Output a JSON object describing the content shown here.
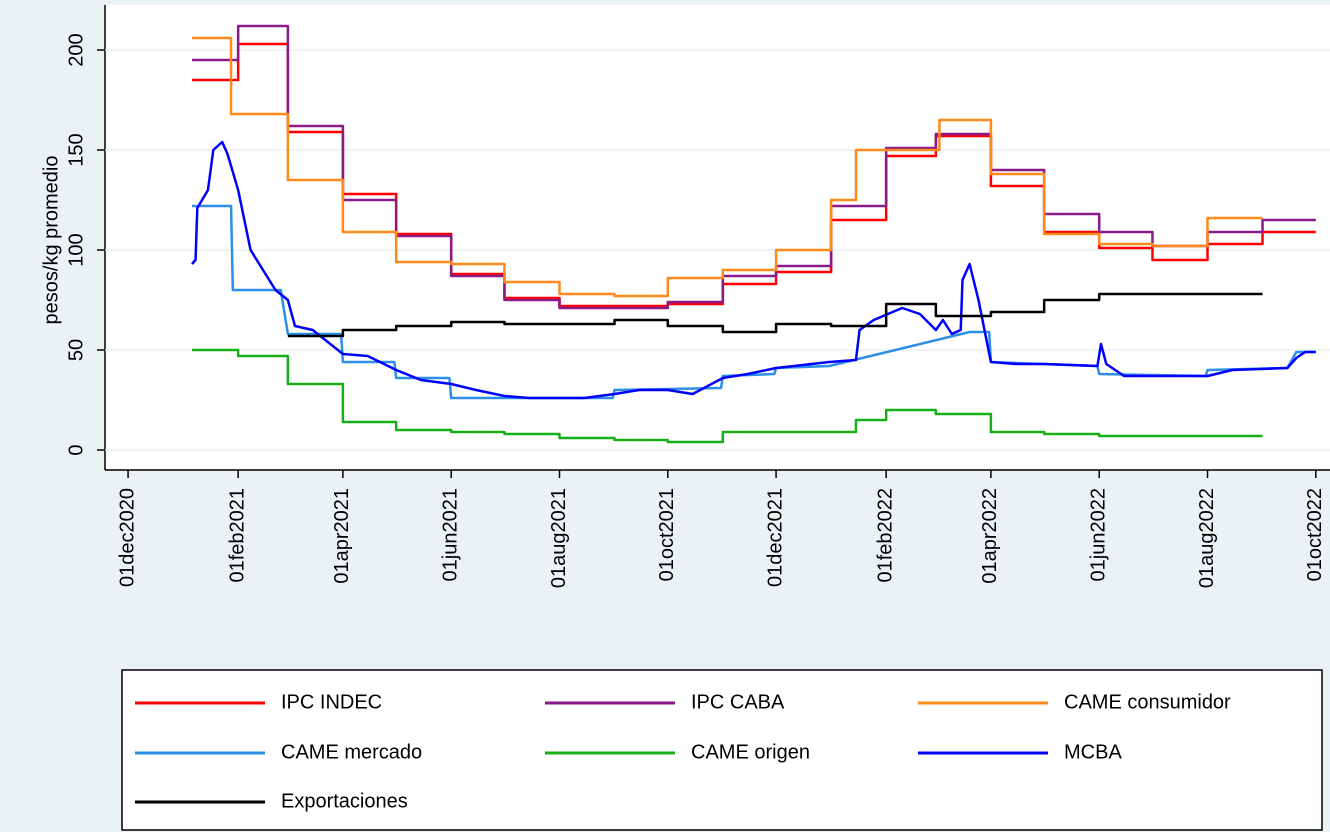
{
  "chart_data": {
    "type": "line",
    "ylabel": "pesos/kg promedio",
    "ylim": [
      -10,
      222.5
    ],
    "yticks": [
      0,
      50,
      100,
      150,
      200
    ],
    "xlim": [
      "2020-11-18",
      "2022-10-09"
    ],
    "xticks": [
      {
        "value": "2020-12-01",
        "label": "01dec2020"
      },
      {
        "value": "2021-02-01",
        "label": "01feb2021"
      },
      {
        "value": "2021-04-01",
        "label": "01apr2021"
      },
      {
        "value": "2021-06-01",
        "label": "01jun2021"
      },
      {
        "value": "2021-08-01",
        "label": "01aug2021"
      },
      {
        "value": "2021-10-01",
        "label": "01oct2021"
      },
      {
        "value": "2021-12-01",
        "label": "01dec2021"
      },
      {
        "value": "2022-02-01",
        "label": "01feb2022"
      },
      {
        "value": "2022-04-01",
        "label": "01apr2022"
      },
      {
        "value": "2022-06-01",
        "label": "01jun2022"
      },
      {
        "value": "2022-08-01",
        "label": "01aug2022"
      },
      {
        "value": "2022-10-01",
        "label": "01oct2022"
      }
    ],
    "grid": true,
    "legend": "bottom",
    "series": [
      {
        "name": "IPC INDEC",
        "color": "#ff0000",
        "step": true,
        "x": [
          "2021-01-06",
          "2021-02-01",
          "2021-03-01",
          "2021-04-01",
          "2021-05-01",
          "2021-06-01",
          "2021-07-01",
          "2021-08-01",
          "2021-09-01",
          "2021-10-01",
          "2021-11-01",
          "2021-12-01",
          "2022-01-01",
          "2022-02-01",
          "2022-03-01",
          "2022-04-01",
          "2022-05-01",
          "2022-06-01",
          "2022-07-01",
          "2022-08-01",
          "2022-09-01",
          "2022-10-01"
        ],
        "values": [
          185,
          203,
          159,
          128,
          108,
          88,
          76,
          72,
          72,
          73,
          83,
          89,
          115,
          147,
          157,
          132,
          109,
          101,
          95,
          103,
          109,
          109
        ]
      },
      {
        "name": "IPC CABA",
        "color": "#8b1a89",
        "step": true,
        "x": [
          "2021-01-06",
          "2021-02-01",
          "2021-03-01",
          "2021-04-01",
          "2021-05-01",
          "2021-06-01",
          "2021-07-01",
          "2021-08-01",
          "2021-09-01",
          "2021-10-01",
          "2021-11-01",
          "2021-12-01",
          "2022-01-01",
          "2022-02-01",
          "2022-03-01",
          "2022-04-01",
          "2022-05-01",
          "2022-06-01",
          "2022-07-01",
          "2022-08-01",
          "2022-09-01",
          "2022-10-01"
        ],
        "values": [
          195,
          212,
          162,
          125,
          107,
          87,
          75,
          71,
          71,
          74,
          87,
          92,
          122,
          151,
          158,
          140,
          118,
          109,
          102,
          109,
          115,
          115
        ]
      },
      {
        "name": "CAME consumidor",
        "color": "#ff8a1c",
        "step": true,
        "x": [
          "2021-01-06",
          "2021-01-28",
          "2021-03-01",
          "2021-04-01",
          "2021-05-01",
          "2021-06-01",
          "2021-07-01",
          "2021-08-01",
          "2021-09-01",
          "2021-10-01",
          "2021-11-01",
          "2021-12-01",
          "2022-01-01",
          "2022-01-15",
          "2022-02-01",
          "2022-03-03",
          "2022-04-01",
          "2022-05-01",
          "2022-06-01",
          "2022-07-01",
          "2022-08-01",
          "2022-09-01"
        ],
        "values": [
          206,
          168,
          135,
          109,
          94,
          93,
          84,
          78,
          77,
          86,
          90,
          100,
          125,
          150,
          150,
          165,
          138,
          108,
          103,
          102,
          116,
          116
        ]
      },
      {
        "name": "CAME mercado",
        "color": "#2e8fe8",
        "step": false,
        "x": [
          "2021-01-06",
          "2021-01-28",
          "2021-01-29",
          "2021-02-25",
          "2021-03-01",
          "2021-03-31",
          "2021-04-01",
          "2021-04-30",
          "2021-05-01",
          "2021-05-31",
          "2021-06-01",
          "2021-08-31",
          "2021-09-01",
          "2021-10-31",
          "2021-11-01",
          "2021-11-30",
          "2021-12-01",
          "2021-12-31",
          "2022-03-20",
          "2022-03-31",
          "2022-04-01",
          "2022-05-31",
          "2022-06-01",
          "2022-07-31",
          "2022-08-01",
          "2022-09-15",
          "2022-09-20",
          "2022-10-01"
        ],
        "values": [
          122,
          122,
          80,
          80,
          58,
          58,
          44,
          44,
          36,
          36,
          26,
          26,
          30,
          31,
          37,
          38,
          41,
          42,
          59,
          59,
          44,
          42,
          38,
          37,
          40,
          41,
          49,
          49
        ]
      },
      {
        "name": "CAME origen",
        "color": "#16b016",
        "step": true,
        "x": [
          "2021-01-06",
          "2021-02-01",
          "2021-03-01",
          "2021-04-01",
          "2021-05-01",
          "2021-06-01",
          "2021-07-01",
          "2021-08-01",
          "2021-09-01",
          "2021-10-01",
          "2021-11-01",
          "2021-12-01",
          "2022-01-01",
          "2022-01-15",
          "2022-02-01",
          "2022-03-01",
          "2022-04-01",
          "2022-05-01",
          "2022-06-01",
          "2022-07-01",
          "2022-08-01",
          "2022-09-01"
        ],
        "values": [
          50,
          47,
          33,
          14,
          10,
          9,
          8,
          6,
          5,
          4,
          9,
          9,
          9,
          15,
          20,
          18,
          9,
          8,
          7,
          7,
          7,
          7
        ]
      },
      {
        "name": "MCBA",
        "color": "#0000ff",
        "step": false,
        "x": [
          "2021-01-06",
          "2021-01-08",
          "2021-01-09",
          "2021-01-15",
          "2021-01-18",
          "2021-01-23",
          "2021-01-26",
          "2021-02-01",
          "2021-02-08",
          "2021-02-15",
          "2021-02-22",
          "2021-03-01",
          "2021-03-05",
          "2021-03-15",
          "2021-04-01",
          "2021-04-15",
          "2021-05-01",
          "2021-05-15",
          "2021-06-01",
          "2021-06-15",
          "2021-07-01",
          "2021-07-15",
          "2021-08-15",
          "2021-09-01",
          "2021-09-15",
          "2021-10-01",
          "2021-10-15",
          "2021-11-01",
          "2021-11-15",
          "2021-12-01",
          "2021-12-31",
          "2022-01-15",
          "2022-01-17",
          "2022-01-25",
          "2022-02-10",
          "2022-02-20",
          "2022-03-01",
          "2022-03-05",
          "2022-03-10",
          "2022-03-15",
          "2022-03-16",
          "2022-03-20",
          "2022-03-25",
          "2022-04-01",
          "2022-04-15",
          "2022-05-01",
          "2022-05-31",
          "2022-06-02",
          "2022-06-05",
          "2022-06-15",
          "2022-07-15",
          "2022-08-01",
          "2022-08-15",
          "2022-09-15",
          "2022-09-20",
          "2022-09-25",
          "2022-10-01"
        ],
        "values": [
          93,
          95,
          121,
          130,
          150,
          154,
          148,
          130,
          100,
          90,
          80,
          75,
          62,
          60,
          48,
          47,
          40,
          35,
          33,
          30,
          27,
          26,
          26,
          28,
          30,
          30,
          28,
          36,
          38,
          41,
          44,
          45,
          60,
          65,
          71,
          68,
          60,
          65,
          58,
          60,
          85,
          93,
          75,
          44,
          43,
          43,
          42,
          53,
          43,
          37,
          37,
          37,
          40,
          41,
          46,
          49,
          49
        ]
      },
      {
        "name": "Exportaciones",
        "color": "#000000",
        "step": true,
        "x": [
          "2021-03-01",
          "2021-04-01",
          "2021-05-01",
          "2021-06-01",
          "2021-07-01",
          "2021-08-01",
          "2021-09-01",
          "2021-10-01",
          "2021-11-01",
          "2021-12-01",
          "2022-01-01",
          "2022-02-01",
          "2022-03-01",
          "2022-04-01",
          "2022-05-01",
          "2022-06-01",
          "2022-07-01",
          "2022-08-01",
          "2022-09-01"
        ],
        "values": [
          57,
          60,
          62,
          64,
          63,
          63,
          65,
          62,
          59,
          63,
          62,
          73,
          67,
          69,
          75,
          78,
          78,
          78,
          78
        ]
      }
    ]
  }
}
